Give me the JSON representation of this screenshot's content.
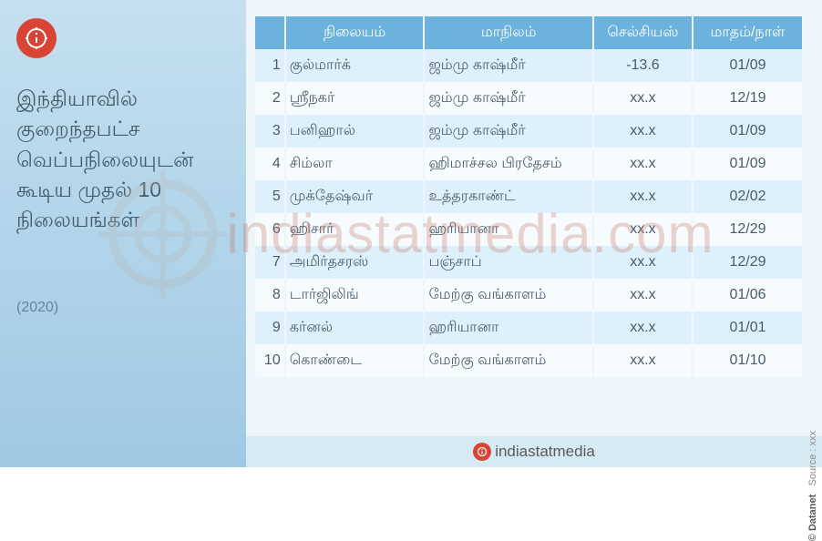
{
  "title": "இந்தியாவில் குறைந்தபட்ச வெப்பநிலையுடன் கூடிய முதல் 10 நிலையங்கள்",
  "year": "(2020)",
  "watermark": "indiastatmedia.com",
  "footer_brand": "indiastatmedia",
  "copyright": "© Datanet",
  "source_label": "Source : xxx",
  "columns": {
    "station": "நிலையம்",
    "state": "மாநிலம்",
    "temp": "செல்சியஸ்",
    "date": "மாதம்/நாள்"
  },
  "rows": [
    {
      "n": "1",
      "station": "குல்மார்க்",
      "state": "ஜம்மு காஷ்மீர்",
      "temp": "-13.6",
      "date": "01/09"
    },
    {
      "n": "2",
      "station": "ஸ்ரீநகர்",
      "state": "ஜம்மு காஷ்மீர்",
      "temp": "xx.x",
      "date": "12/19"
    },
    {
      "n": "3",
      "station": "பனிஹால்",
      "state": "ஜம்மு காஷ்மீர்",
      "temp": "xx.x",
      "date": "01/09"
    },
    {
      "n": "4",
      "station": "சிம்லா",
      "state": "ஹிமாச்சல பிரதேசம்",
      "temp": "xx.x",
      "date": "01/09"
    },
    {
      "n": "5",
      "station": "முக்தேஷ்வர்",
      "state": "உத்தரகாண்ட்",
      "temp": "xx.x",
      "date": "02/02"
    },
    {
      "n": "6",
      "station": "ஹிசார்",
      "state": "ஹரியானா",
      "temp": "xx.x",
      "date": "12/29"
    },
    {
      "n": "7",
      "station": "அமிர்தசரஸ்",
      "state": "பஞ்சாப்",
      "temp": "xx.x",
      "date": "12/29"
    },
    {
      "n": "8",
      "station": "டார்ஜிலிங்",
      "state": "மேற்கு வங்காளம்",
      "temp": "xx.x",
      "date": "01/06"
    },
    {
      "n": "9",
      "station": "கர்னல்",
      "state": "ஹரியானா",
      "temp": "xx.x",
      "date": "01/01"
    },
    {
      "n": "10",
      "station": "கொண்டை",
      "state": "மேற்கு வங்காளம்",
      "temp": "xx.x",
      "date": "01/10"
    }
  ],
  "colors": {
    "header_bg": "#6bb3dd",
    "row_odd": "#def0f9",
    "row_even": "#f6fbfe",
    "accent": "#d84435",
    "left_grad_top": "#c5e0f0",
    "left_grad_bottom": "#9fc9e3",
    "title_color": "#445a6b"
  }
}
